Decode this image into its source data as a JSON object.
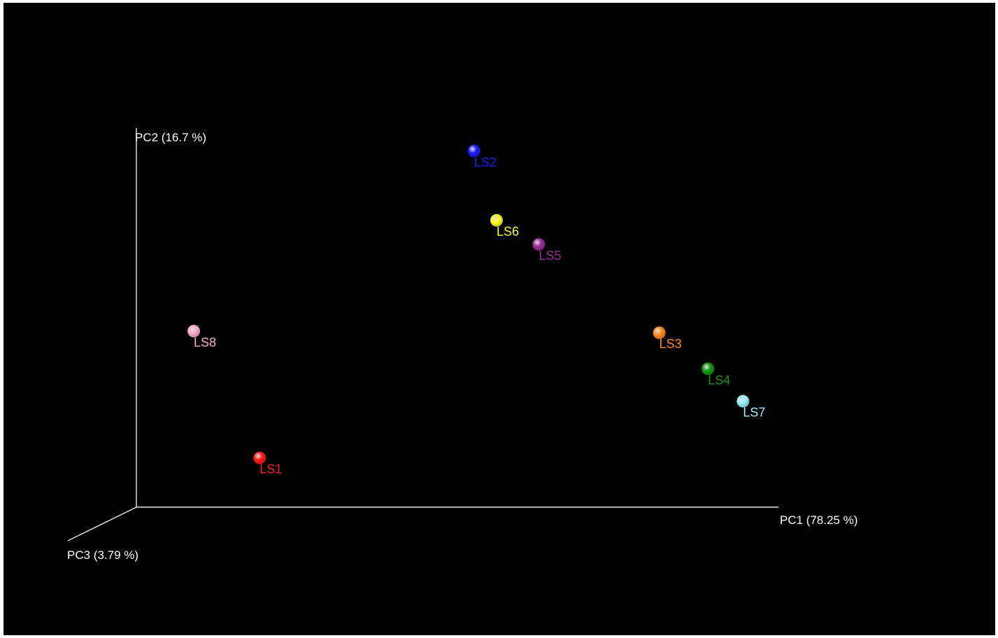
{
  "chart_data": {
    "type": "scatter",
    "title": "",
    "axes": {
      "x": {
        "label": "PC1 (78.25 %)"
      },
      "y": {
        "label": "PC2 (16.7 %)"
      },
      "z": {
        "label": "PC3 (3.79 %)"
      }
    },
    "grid": false,
    "background": "#000000",
    "axis_color": "#e8e8e8",
    "points": [
      {
        "label": "LS1",
        "x": 0.157,
        "y": 0.07,
        "color": "#ff1a1a"
      },
      {
        "label": "LS2",
        "x": 0.518,
        "y": 0.99,
        "color": "#1a1aff"
      },
      {
        "label": "LS3",
        "x": 0.83,
        "y": 0.445,
        "color": "#ff8c1a"
      },
      {
        "label": "LS4",
        "x": 0.912,
        "y": 0.337,
        "color": "#119911"
      },
      {
        "label": "LS5",
        "x": 0.627,
        "y": 0.71,
        "color": "#9b2d9b"
      },
      {
        "label": "LS6",
        "x": 0.556,
        "y": 0.782,
        "color": "#ffff1a"
      },
      {
        "label": "LS7",
        "x": 0.971,
        "y": 0.24,
        "color": "#99f0ff"
      },
      {
        "label": "LS8",
        "x": 0.046,
        "y": 0.45,
        "color": "#ffaacc"
      }
    ]
  }
}
